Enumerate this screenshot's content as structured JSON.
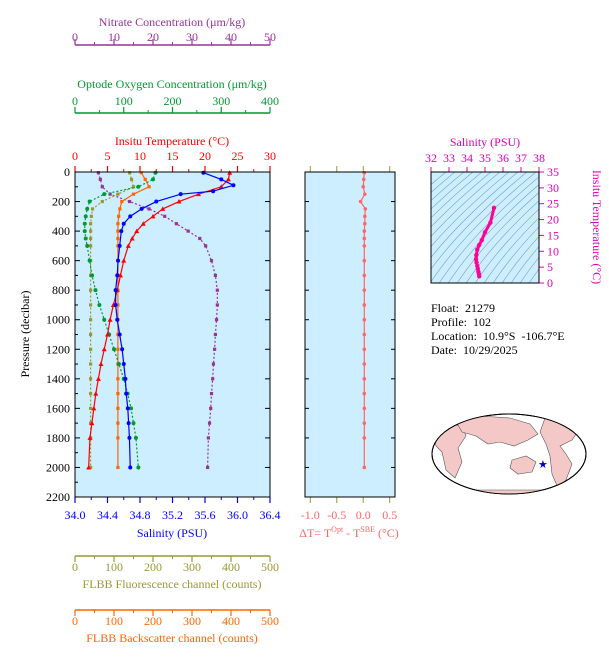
{
  "colors": {
    "nitrate": "#993399",
    "oxygen": "#009933",
    "temperature": "#ff0000",
    "salinity": "#0000ff",
    "fluorescence": "#999933",
    "backscatter": "#ff6600",
    "delta_t": "#ff6666",
    "ts_axis": "#e000c0",
    "panel_bg": "#cceeff",
    "land": "#f5c8c8",
    "ocean": "#ffffff"
  },
  "info": {
    "float": "Float:  21279",
    "profile": "Profile:  102",
    "location": "Location:  10.9°S  -106.7°E",
    "date": "Date:  10/29/2025"
  },
  "chart_data": [
    {
      "type": "line",
      "panel": "profiles",
      "ylabel": "Pressure (decibar)",
      "ylim": [
        2200,
        0
      ],
      "yticks": [
        "0",
        "200",
        "400",
        "600",
        "800",
        "1000",
        "1200",
        "1400",
        "1600",
        "1800",
        "2000",
        "2200"
      ],
      "grid": false,
      "axes": {
        "nitrate": {
          "label": "Nitrate Concentration (μm/kg)",
          "lim": [
            0,
            50
          ],
          "ticks": [
            "0",
            "10",
            "20",
            "30",
            "40",
            "50"
          ]
        },
        "oxygen": {
          "label": "Optode Oxygen Concentration (μm/kg)",
          "lim": [
            0,
            400
          ],
          "ticks": [
            "0",
            "100",
            "200",
            "300",
            "400"
          ]
        },
        "temperature": {
          "label": "Insitu Temperature (°C)",
          "lim": [
            0,
            30
          ],
          "ticks": [
            "0",
            "5",
            "10",
            "15",
            "20",
            "25",
            "30"
          ]
        },
        "salinity": {
          "label": "Salinity (PSU)",
          "lim": [
            34.0,
            36.4
          ],
          "ticks": [
            "34.0",
            "34.4",
            "34.8",
            "35.2",
            "35.6",
            "36.0",
            "36.4"
          ]
        },
        "fluorescence": {
          "label": "FLBB Fluorescence channel (counts)",
          "lim": [
            0,
            500
          ],
          "ticks": [
            "0",
            "100",
            "200",
            "300",
            "400",
            "500"
          ]
        },
        "backscatter": {
          "label": "FLBB Backscatter channel (counts)",
          "lim": [
            0,
            500
          ],
          "ticks": [
            "0",
            "100",
            "200",
            "300",
            "400",
            "500"
          ]
        }
      },
      "series": [
        {
          "axis": "temperature",
          "marker": "triangle",
          "x": [
            23.8,
            23.6,
            22.5,
            19,
            16,
            13.5,
            12,
            10.5,
            9.5,
            8.8,
            8.2,
            7.5,
            7,
            6.5,
            5.9,
            5.4,
            5,
            4.5,
            4,
            3.6,
            3.2,
            2.9,
            2.6,
            2.3,
            2.1
          ],
          "y": [
            5,
            50,
            100,
            150,
            200,
            250,
            300,
            350,
            400,
            450,
            500,
            600,
            700,
            800,
            900,
            1000,
            1100,
            1200,
            1300,
            1400,
            1500,
            1600,
            1700,
            1800,
            2000
          ]
        },
        {
          "axis": "salinity",
          "marker": "circle",
          "x": [
            35.58,
            35.8,
            35.95,
            35.7,
            35.3,
            35.0,
            34.82,
            34.68,
            34.6,
            34.57,
            34.55,
            34.53,
            34.52,
            34.5,
            34.5,
            34.52,
            34.55,
            34.58,
            34.6,
            34.62,
            34.63,
            34.65,
            34.66,
            34.67,
            34.68
          ],
          "y": [
            5,
            50,
            90,
            130,
            150,
            200,
            250,
            300,
            350,
            400,
            500,
            600,
            700,
            800,
            900,
            1000,
            1100,
            1200,
            1300,
            1400,
            1500,
            1600,
            1700,
            1800,
            2000
          ]
        },
        {
          "axis": "oxygen",
          "marker": "circle",
          "x": [
            165,
            160,
            130,
            60,
            30,
            25,
            22,
            20,
            20,
            22,
            25,
            30,
            35,
            42,
            50,
            60,
            70,
            80,
            90,
            100,
            108,
            115,
            120,
            125,
            130
          ],
          "y": [
            5,
            50,
            100,
            150,
            200,
            250,
            300,
            350,
            400,
            450,
            500,
            600,
            700,
            800,
            900,
            1000,
            1100,
            1200,
            1300,
            1400,
            1500,
            1600,
            1700,
            1800,
            2000
          ]
        },
        {
          "axis": "nitrate",
          "marker": "square",
          "x": [
            6,
            6.5,
            7,
            9,
            14,
            19,
            23,
            26,
            29,
            32,
            33.5,
            35,
            36,
            36.5,
            36.5,
            36.3,
            36,
            35.8,
            35.5,
            35.3,
            35,
            34.8,
            34.5,
            34.2,
            34
          ],
          "y": [
            5,
            50,
            100,
            150,
            200,
            250,
            300,
            350,
            400,
            450,
            500,
            600,
            700,
            800,
            900,
            1000,
            1100,
            1200,
            1300,
            1400,
            1500,
            1600,
            1700,
            1800,
            2000
          ]
        },
        {
          "axis": "fluorescence",
          "marker": "square",
          "x": [
            140,
            145,
            150,
            110,
            70,
            45,
            42,
            40,
            40,
            40,
            40,
            40,
            40,
            40,
            40,
            40,
            40,
            40,
            40,
            40,
            40,
            40,
            40,
            40,
            40
          ],
          "y": [
            5,
            50,
            100,
            150,
            200,
            250,
            300,
            350,
            400,
            450,
            500,
            600,
            700,
            800,
            900,
            1000,
            1100,
            1200,
            1300,
            1400,
            1500,
            1600,
            1700,
            1800,
            2000
          ]
        },
        {
          "axis": "backscatter",
          "marker": "square",
          "x": [
            170,
            180,
            190,
            150,
            120,
            115,
            112,
            110,
            110,
            110,
            110,
            110,
            110,
            110,
            110,
            110,
            110,
            110,
            110,
            110,
            110,
            110,
            110,
            110,
            110
          ],
          "y": [
            5,
            50,
            100,
            150,
            200,
            250,
            300,
            350,
            400,
            450,
            500,
            600,
            700,
            800,
            900,
            1000,
            1100,
            1200,
            1300,
            1400,
            1500,
            1600,
            1700,
            1800,
            2000
          ]
        }
      ]
    },
    {
      "type": "line",
      "panel": "delta_t",
      "xlabel_main": "ΔT= T",
      "xlabel_sup1": "Opt",
      "xlabel_mid": " - T",
      "xlabel_sup2": "SBE",
      "xlabel_unit": " (°C)",
      "xlim": [
        -1.1,
        0.6
      ],
      "xticks": [
        "-1.0",
        "-0.5",
        "0.0",
        "0.5"
      ],
      "xtick_values": [
        -1.0,
        -0.5,
        0.0,
        0.5
      ],
      "ylim": [
        2200,
        0
      ],
      "series": [
        {
          "name": "",
          "x": [
            0.02,
            0.01,
            0.0,
            0.03,
            -0.05,
            0.04,
            0.03,
            0.03,
            0.02,
            0.02,
            0.02,
            0.02,
            0.02,
            0.02,
            0.02,
            0.02,
            0.02,
            0.02,
            0.02,
            0.02,
            0.02,
            0.02,
            0.02,
            0.02,
            0.02
          ],
          "y": [
            5,
            50,
            100,
            150,
            200,
            250,
            300,
            350,
            400,
            450,
            500,
            600,
            700,
            800,
            900,
            1000,
            1100,
            1200,
            1300,
            1400,
            1500,
            1600,
            1700,
            1800,
            2000
          ]
        }
      ]
    },
    {
      "type": "line",
      "panel": "ts",
      "xlabel": "Salinity (PSU)",
      "ylabel": "Insitu Temperature (°C)",
      "xlim": [
        32,
        38
      ],
      "ylim": [
        0,
        35
      ],
      "xticks": [
        "32",
        "33",
        "34",
        "35",
        "36",
        "37",
        "38"
      ],
      "yticks": [
        "0",
        "5",
        "10",
        "15",
        "20",
        "25",
        "30",
        "35"
      ],
      "series": [
        {
          "name": "",
          "x": [
            34.68,
            34.66,
            34.63,
            34.6,
            34.57,
            34.53,
            34.5,
            34.52,
            34.57,
            34.68,
            34.82,
            35.0,
            35.3,
            35.5
          ],
          "y": [
            2.1,
            2.9,
            3.6,
            4.5,
            5.4,
            6.5,
            7.5,
            8.8,
            10.5,
            12,
            13.5,
            16,
            19,
            23.7
          ]
        }
      ]
    }
  ]
}
